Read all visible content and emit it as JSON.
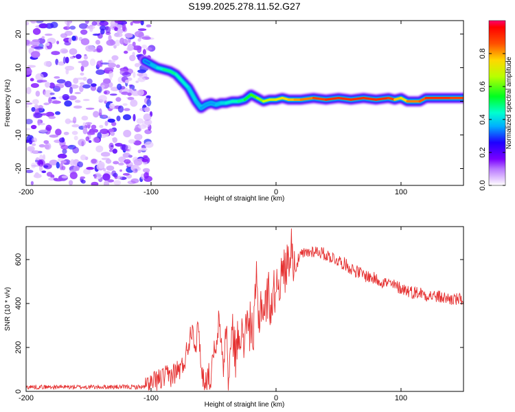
{
  "chart_data": [
    {
      "type": "heatmap",
      "title": "S199.2025.278.11.52.G27",
      "xlabel": "Height of straight line (km)",
      "ylabel": "Frequency (Hz)",
      "xlim": [
        -200,
        150
      ],
      "ylim": [
        -25,
        24
      ],
      "xticks": [
        -200,
        -100,
        0,
        100
      ],
      "yticks": [
        -20,
        -10,
        0,
        10,
        20
      ],
      "colorbar": {
        "label": "Normalized spectral amplitude",
        "range": [
          0,
          1
        ],
        "ticks": [
          "0.0",
          "0.2",
          "0.4",
          "0.6",
          "0.8"
        ]
      },
      "noise_region_x": [
        -200,
        -105
      ],
      "ridge": {
        "x": [
          -105,
          -100,
          -95,
          -90,
          -85,
          -80,
          -75,
          -70,
          -67,
          -64,
          -60,
          -56,
          -52,
          -48,
          -44,
          -40,
          -35,
          -30,
          -25,
          -20,
          -15,
          -10,
          -5,
          0,
          5,
          10,
          15,
          20,
          30,
          40,
          50,
          60,
          70,
          80,
          90,
          95,
          100,
          105,
          110,
          115,
          120,
          130,
          140,
          150
        ],
        "y": [
          12,
          11,
          10,
          9.5,
          9,
          8,
          6,
          4,
          2,
          0,
          -2,
          -1,
          -0.5,
          -1,
          -0.5,
          -0.5,
          0,
          0,
          0.5,
          2,
          1,
          0,
          0.5,
          0.5,
          1,
          0.5,
          0.5,
          0.5,
          1,
          0.5,
          1,
          0.5,
          1,
          0.5,
          1,
          0.5,
          1,
          0,
          0,
          0,
          1,
          1,
          1,
          1
        ],
        "amplitude": [
          0.3,
          0.35,
          0.4,
          0.45,
          0.5,
          0.45,
          0.45,
          0.4,
          0.4,
          0.4,
          0.35,
          0.35,
          0.35,
          0.35,
          0.4,
          0.4,
          0.45,
          0.45,
          0.5,
          0.55,
          0.6,
          0.65,
          0.7,
          0.7,
          0.75,
          0.75,
          0.8,
          0.8,
          0.85,
          0.9,
          0.9,
          0.9,
          0.9,
          0.9,
          0.9,
          0.85,
          0.7,
          0.8,
          0.85,
          0.8,
          0.9,
          0.9,
          0.9,
          0.85
        ]
      }
    },
    {
      "type": "line",
      "xlabel": "Height of straight line (km)",
      "ylabel": "SNR (10 * v/v)",
      "xlim": [
        -200,
        150
      ],
      "ylim": [
        0,
        750
      ],
      "xticks": [
        -200,
        -100,
        0,
        100
      ],
      "yticks": [
        0,
        200,
        400,
        600
      ],
      "series": [
        {
          "name": "SNR",
          "color": "#e53030",
          "x": [
            -200,
            -180,
            -160,
            -140,
            -120,
            -105,
            -100,
            -95,
            -90,
            -85,
            -80,
            -75,
            -72,
            -70,
            -67,
            -64,
            -62,
            -60,
            -58,
            -56,
            -54,
            -52,
            -50,
            -48,
            -46,
            -44,
            -42,
            -40,
            -38,
            -36,
            -34,
            -32,
            -30,
            -28,
            -26,
            -24,
            -22,
            -20,
            -18,
            -16,
            -14,
            -12,
            -10,
            -8,
            -6,
            -4,
            -2,
            0,
            2,
            4,
            6,
            8,
            10,
            12,
            13,
            14,
            16,
            18,
            20,
            25,
            30,
            35,
            40,
            45,
            50,
            55,
            60,
            65,
            70,
            75,
            80,
            85,
            90,
            95,
            100,
            105,
            110,
            115,
            120,
            125,
            130,
            135,
            140,
            145,
            150
          ],
          "y": [
            20,
            20,
            20,
            20,
            20,
            20,
            30,
            50,
            60,
            70,
            90,
            110,
            170,
            220,
            300,
            200,
            320,
            100,
            60,
            50,
            80,
            40,
            200,
            150,
            320,
            240,
            100,
            300,
            40,
            220,
            260,
            150,
            280,
            300,
            160,
            380,
            250,
            330,
            220,
            520,
            300,
            420,
            360,
            400,
            450,
            380,
            440,
            480,
            520,
            500,
            560,
            540,
            640,
            600,
            740,
            560,
            570,
            600,
            620,
            630,
            640,
            635,
            620,
            610,
            595,
            580,
            560,
            545,
            530,
            520,
            510,
            500,
            490,
            480,
            470,
            460,
            450,
            450,
            440,
            435,
            430,
            425,
            420,
            418,
            415
          ]
        }
      ]
    }
  ]
}
